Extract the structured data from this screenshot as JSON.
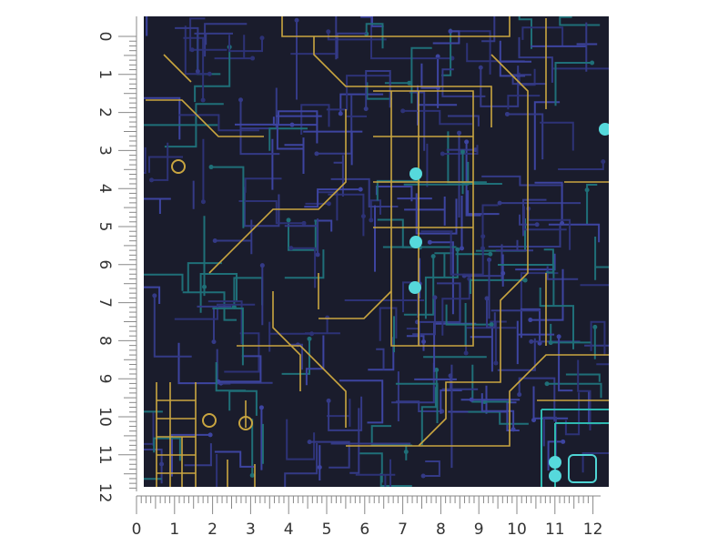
{
  "rulers": {
    "vertical": {
      "labels": [
        "0",
        "1",
        "2",
        "3",
        "4",
        "5",
        "6",
        "7",
        "8",
        "9",
        "10",
        "11",
        "12"
      ]
    },
    "horizontal": {
      "labels": [
        "0",
        "1",
        "2",
        "3",
        "4",
        "5",
        "6",
        "7",
        "8",
        "9",
        "10",
        "11",
        "12"
      ]
    }
  }
}
